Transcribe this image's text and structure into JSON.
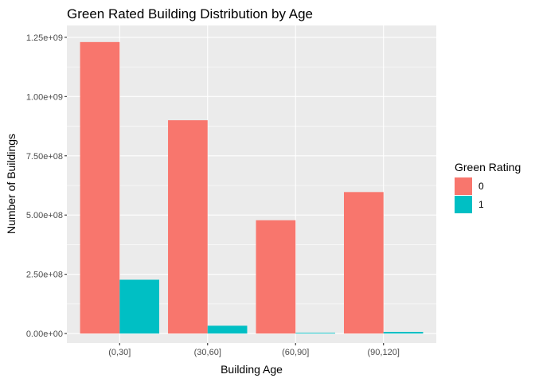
{
  "chart_data": {
    "type": "bar",
    "title": "Green Rated Building Distribution by Age",
    "xlabel": "Building Age",
    "ylabel": "Number of Buildings",
    "categories": [
      "(0,30]",
      "(30,60]",
      "(60,90]",
      "(90,120]"
    ],
    "series": [
      {
        "name": "0",
        "color": "#F8766D",
        "values": [
          1230000000,
          900000000,
          478000000,
          597000000
        ]
      },
      {
        "name": "1",
        "color": "#00BFC4",
        "values": [
          227000000,
          33000000,
          3000000,
          7000000
        ]
      }
    ],
    "ylim": [
      -40000000,
      1300000000
    ],
    "yticks": [
      0,
      250000000,
      500000000,
      750000000,
      1000000000,
      1250000000
    ],
    "ytick_labels": [
      "0.00e+00",
      "2.50e+08",
      "5.00e+08",
      "7.50e+08",
      "1.00e+09",
      "1.25e+09"
    ],
    "grid": true,
    "legend": {
      "title": "Green Rating",
      "position": "right"
    },
    "panel_background": "#EBEBEB",
    "grid_color": "#FFFFFF"
  }
}
